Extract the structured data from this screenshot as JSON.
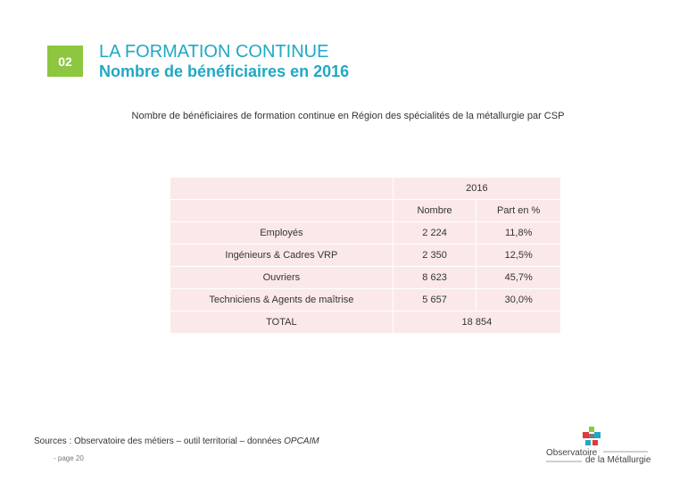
{
  "header": {
    "badge": "02",
    "title": "LA FORMATION CONTINUE",
    "subtitle": "Nombre de bénéficiaires en 2016"
  },
  "caption": "Nombre de bénéficiaires de formation continue en Région des spécialités de la métallurgie par CSP",
  "table": {
    "year": "2016",
    "col_number": "Nombre",
    "col_share": "Part en %",
    "rows": [
      {
        "label": "Employés",
        "number": "2 224",
        "share": "11,8%"
      },
      {
        "label": "Ingénieurs & Cadres VRP",
        "number": "2 350",
        "share": "12,5%"
      },
      {
        "label": "Ouvriers",
        "number": "8 623",
        "share": "45,7%"
      },
      {
        "label": "Techniciens & Agents de maîtrise",
        "number": "5 657",
        "share": "30,0%"
      }
    ],
    "total_label": "TOTAL",
    "total_value": "18 854"
  },
  "footer": {
    "sources_prefix": "Sources : Observatoire des métiers – outil territorial – données ",
    "sources_em": "OPCAIM",
    "page": "- page 20"
  },
  "logo": {
    "line1": "Observatoire",
    "line2": "de la Métallurgie",
    "colors": [
      "#e03a3e",
      "#20a8c4",
      "#8dc63f",
      "#7a7a7a"
    ]
  }
}
